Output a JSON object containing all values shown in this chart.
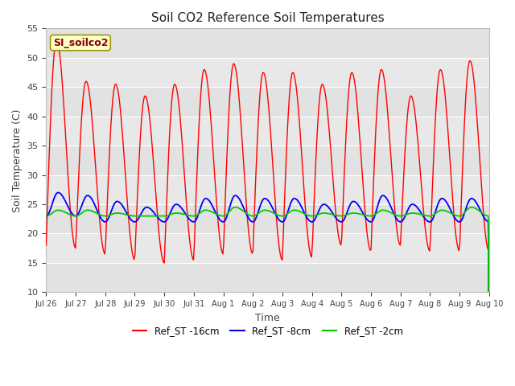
{
  "title": "Soil CO2 Reference Soil Temperatures",
  "xlabel": "Time",
  "ylabel": "Soil Temperature (C)",
  "ylim": [
    10,
    55
  ],
  "annotation_label": "SI_soilco2",
  "legend_entries": [
    "Ref_ST -16cm",
    "Ref_ST -8cm",
    "Ref_ST -2cm"
  ],
  "legend_colors": [
    "#ff0000",
    "#0000ff",
    "#00cc00"
  ],
  "x_tick_labels": [
    "Jul 26",
    "Jul 27",
    "Jul 28",
    "Jul 29",
    "Jul 30",
    "Jul 31",
    "Aug 1",
    "Aug 2",
    "Aug 3",
    "Aug 4",
    "Aug 5",
    "Aug 6",
    "Aug 7",
    "Aug 8",
    "Aug 9",
    "Aug 10"
  ],
  "n_days": 15,
  "red_peaks": [
    53,
    46,
    45.5,
    43.5,
    45.5,
    48,
    49,
    47.5,
    47.5,
    45.5,
    47.5,
    48,
    43.5,
    48,
    49.5
  ],
  "red_troughs": [
    18,
    17.5,
    16.5,
    15.5,
    15,
    15.5,
    16.5,
    16.5,
    15.5,
    16,
    18,
    17,
    18,
    17,
    17
  ],
  "blue_peaks": [
    27,
    26.5,
    25.5,
    24.5,
    25,
    26,
    26.5,
    26,
    26,
    25,
    25.5,
    26.5,
    25,
    26,
    26
  ],
  "blue_troughs": [
    23,
    23,
    22,
    22,
    22,
    22,
    22,
    22,
    22,
    22,
    22,
    22,
    22,
    22,
    22
  ],
  "green_peaks": [
    24,
    24,
    23.5,
    23,
    23.5,
    24,
    24.5,
    24,
    24,
    23.5,
    23.5,
    24,
    23.5,
    24,
    24.5
  ],
  "green_troughs": [
    23,
    23,
    23,
    23,
    23,
    23,
    23,
    23,
    23,
    23,
    23,
    23,
    23,
    23,
    23
  ]
}
